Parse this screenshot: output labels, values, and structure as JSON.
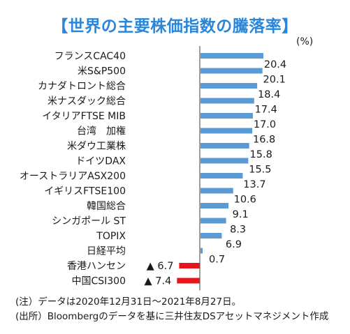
{
  "title": "【世界の主要株価指数の騰落率】",
  "unit": "(%)",
  "notes": {
    "note1": "(注）データは2020年12月31日～2021年8月27日。",
    "note2": "(出所）Bloombergのデータを基に三井住友DSアセットマネジメント作成"
  },
  "colors": {
    "positive": "#5b9bd5",
    "negative": "#e8141b",
    "title": "#2a86d8"
  },
  "chart_data": {
    "type": "bar",
    "orientation": "horizontal",
    "categories": [
      "フランスCAC40",
      "米S&P500",
      "カナダトロント総合",
      "米ナスダック総合",
      "イタリアFTSE MIB",
      "台湾　加権",
      "米ダウ工業株",
      "ドイツDAX",
      "オーストラリアASX200",
      "イギリスFTSE100",
      "韓国総合",
      "シンガポール ST",
      "TOPIX",
      "日経平均",
      "香港ハンセン",
      "中国CSI300"
    ],
    "values": [
      20.4,
      20.1,
      18.4,
      17.4,
      17.0,
      16.8,
      15.8,
      15.5,
      13.7,
      10.6,
      9.1,
      8.3,
      6.9,
      0.7,
      -6.7,
      -7.4
    ],
    "value_labels": [
      "20.4",
      "20.1",
      "18.4",
      "17.4",
      "17.0",
      "16.8",
      "15.8",
      "15.5",
      "13.7",
      "10.6",
      "9.1",
      "8.3",
      "6.9",
      "0.7",
      "▲ 6.7",
      "▲ 7.4"
    ],
    "xlim": [
      -7.4,
      20.4
    ],
    "ylabel": "(%)",
    "grid": false,
    "legend": "none"
  }
}
